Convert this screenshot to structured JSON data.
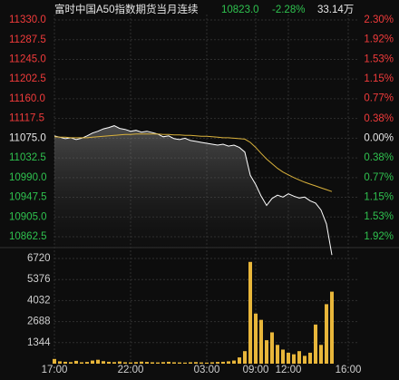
{
  "chart_data": {
    "type": "line",
    "title": "富时中国A50指数期货当月连续",
    "last_price": "10823.0",
    "change_pct": "-2.28%",
    "volume_total": "33.14万",
    "x": [
      0,
      1,
      2,
      3,
      4,
      5,
      6,
      7,
      8,
      9,
      10,
      11,
      12,
      13,
      14,
      15,
      16,
      17,
      18,
      19,
      20,
      21,
      22,
      23,
      24,
      25,
      26,
      27,
      28,
      29,
      30,
      31,
      32,
      33,
      34,
      35,
      36,
      37,
      38,
      39,
      40,
      41,
      42,
      43,
      44,
      45,
      46,
      47,
      48,
      49,
      50,
      51
    ],
    "xlim": [
      0,
      56
    ],
    "xticks": [
      {
        "value": 0,
        "label": "17:00"
      },
      {
        "value": 14,
        "label": "22:00"
      },
      {
        "value": 28,
        "label": "03:00"
      },
      {
        "value": 37,
        "label": "09:00"
      },
      {
        "value": 43,
        "label": "12:00"
      },
      {
        "value": 54,
        "label": "16:00"
      }
    ],
    "series": [
      {
        "name": "price",
        "color": "#ffffff",
        "values": [
          11080,
          11077,
          11074,
          11076,
          11072,
          11075,
          11080,
          11086,
          11090,
          11095,
          11098,
          11102,
          11096,
          11094,
          11090,
          11092,
          11088,
          11090,
          11087,
          11084,
          11078,
          11080,
          11074,
          11072,
          11075,
          11070,
          11068,
          11066,
          11064,
          11062,
          11060,
          11062,
          11058,
          11060,
          11055,
          11045,
          10995,
          10975,
          10950,
          10930,
          10945,
          10952,
          10948,
          10955,
          10950,
          10946,
          10948,
          10940,
          10935,
          10920,
          10890,
          10823
        ]
      },
      {
        "name": "average",
        "color": "#d9b13b",
        "values": [
          11078,
          11077,
          11077,
          11076,
          11076,
          11076,
          11076,
          11077,
          11078,
          11079,
          11080,
          11081,
          11082,
          11083,
          11083,
          11084,
          11084,
          11084,
          11084,
          11084,
          11083,
          11083,
          11082,
          11082,
          11081,
          11081,
          11080,
          11079,
          11079,
          11078,
          11077,
          11076,
          11076,
          11075,
          11074,
          11073,
          11066,
          11055,
          11042,
          11030,
          11020,
          11010,
          11002,
          10996,
          10990,
          10985,
          10980,
          10976,
          10972,
          10968,
          10964,
          10960
        ]
      }
    ],
    "volume": {
      "color": "#e8b63a",
      "values": [
        300,
        150,
        120,
        100,
        180,
        90,
        110,
        200,
        250,
        160,
        120,
        100,
        140,
        90,
        80,
        100,
        130,
        110,
        90,
        80,
        100,
        120,
        90,
        80,
        70,
        90,
        100,
        80,
        70,
        90,
        110,
        120,
        150,
        200,
        400,
        800,
        6500,
        3200,
        2800,
        1500,
        2000,
        1200,
        900,
        700,
        600,
        800,
        500,
        700,
        2500,
        1200,
        3800,
        4600
      ],
      "ylim": [
        0,
        6720
      ],
      "yticks": [
        6720,
        5376,
        4032,
        2688,
        1344
      ]
    },
    "ylim": [
      10862.5,
      11330
    ],
    "yticks": [
      {
        "value": 11330,
        "label": "11330.0"
      },
      {
        "value": 11287.5,
        "label": "11287.5"
      },
      {
        "value": 11245,
        "label": "11245.0"
      },
      {
        "value": 11202.5,
        "label": "11202.5"
      },
      {
        "value": 11160,
        "label": "11160.0"
      },
      {
        "value": 11117.5,
        "label": "11117.5"
      },
      {
        "value": 11075,
        "label": "11075.0"
      },
      {
        "value": 11032.5,
        "label": "11032.5"
      },
      {
        "value": 10990,
        "label": "10990.0"
      },
      {
        "value": 10947.5,
        "label": "10947.5"
      },
      {
        "value": 10905,
        "label": "10905.0"
      },
      {
        "value": 10862.5,
        "label": "10862.5"
      }
    ],
    "y2lim": [
      -1.92,
      2.3
    ],
    "y2ticks": [
      {
        "value": 2.3,
        "label": "2.30%"
      },
      {
        "value": 1.92,
        "label": "1.92%"
      },
      {
        "value": 1.53,
        "label": "1.53%"
      },
      {
        "value": 1.15,
        "label": "1.15%"
      },
      {
        "value": 0.77,
        "label": "0.77%"
      },
      {
        "value": 0.38,
        "label": "0.38%"
      },
      {
        "value": 0.0,
        "label": "0.00%"
      },
      {
        "value": -0.38,
        "label": "0.38%"
      },
      {
        "value": -0.77,
        "label": "0.77%"
      },
      {
        "value": -1.15,
        "label": "1.15%"
      },
      {
        "value": -1.53,
        "label": "1.53%"
      },
      {
        "value": -1.92,
        "label": "1.92%"
      }
    ],
    "up_color": "#f23b3b",
    "down_color": "#2fc24f",
    "flat_color": "#e6e6e6",
    "grid": true
  }
}
